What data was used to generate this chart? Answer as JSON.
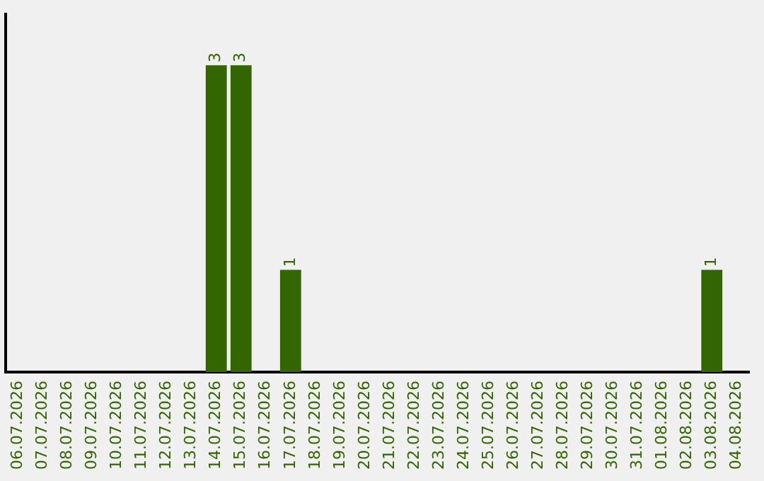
{
  "chart_data": {
    "type": "bar",
    "categories": [
      "06.07.2026",
      "07.07.2026",
      "08.07.2026",
      "09.07.2026",
      "10.07.2026",
      "11.07.2026",
      "12.07.2026",
      "13.07.2026",
      "14.07.2026",
      "15.07.2026",
      "16.07.2026",
      "17.07.2026",
      "18.07.2026",
      "19.07.2026",
      "20.07.2026",
      "21.07.2026",
      "22.07.2026",
      "23.07.2026",
      "24.07.2026",
      "25.07.2026",
      "26.07.2026",
      "27.07.2026",
      "28.07.2026",
      "29.07.2026",
      "30.07.2026",
      "31.07.2026",
      "01.08.2026",
      "02.08.2026",
      "03.08.2026",
      "04.08.2026"
    ],
    "values": [
      0,
      0,
      0,
      0,
      0,
      0,
      0,
      0,
      3,
      3,
      0,
      1,
      0,
      0,
      0,
      0,
      0,
      0,
      0,
      0,
      0,
      0,
      0,
      0,
      0,
      0,
      0,
      0,
      1,
      0
    ],
    "value_labels": [
      null,
      null,
      null,
      null,
      null,
      null,
      null,
      null,
      "3",
      "3",
      null,
      "1",
      null,
      null,
      null,
      null,
      null,
      null,
      null,
      null,
      null,
      null,
      null,
      null,
      null,
      null,
      null,
      null,
      "1",
      null
    ],
    "color": "#336600",
    "tick_labels": "x",
    "grid": false,
    "legend": false
  }
}
